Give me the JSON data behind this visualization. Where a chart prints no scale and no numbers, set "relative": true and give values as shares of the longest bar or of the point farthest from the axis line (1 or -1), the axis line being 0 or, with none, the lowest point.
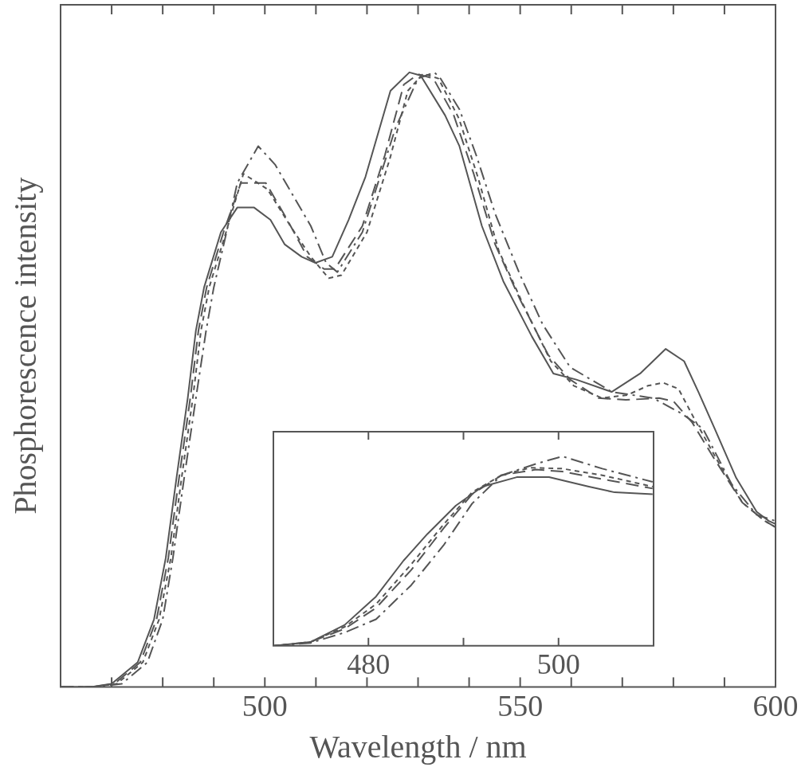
{
  "chart_data": [
    {
      "type": "line",
      "xlabel": "Wavelength / nm",
      "ylabel": "Phosphorescence intensity",
      "relative": true,
      "xlim": [
        460,
        600
      ],
      "xticks": [
        {
          "value": 470,
          "label": null
        },
        {
          "value": 480,
          "label": null
        },
        {
          "value": 490,
          "label": null
        },
        500,
        {
          "value": 510,
          "label": null
        },
        {
          "value": 520,
          "label": null
        },
        {
          "value": 530,
          "label": null
        },
        {
          "value": 540,
          "label": null
        },
        550,
        {
          "value": 560,
          "label": null
        },
        {
          "value": 570,
          "label": null
        },
        {
          "value": 580,
          "label": null
        },
        {
          "value": 590,
          "label": null
        },
        600
      ],
      "grid": false,
      "legend": false,
      "marker": "none",
      "series": [
        {
          "color": "#555555",
          "line_style": "solid",
          "x": [
            460,
            466,
            470,
            475.1,
            478.3,
            480.6,
            482.7,
            484.9,
            486.5,
            488.1,
            491.4,
            494.6,
            497.9,
            501.1,
            503.9,
            507.2,
            509.9,
            513.2,
            516.4,
            519.7,
            524.6,
            528.3,
            530.5,
            535.3,
            538.1,
            542.5,
            546.7,
            552.3,
            556.5,
            561,
            567.9,
            573.5,
            578.5,
            582.1,
            584.9,
            588.1,
            592.3,
            596.3,
            598.7,
            600
          ],
          "values": [
            0,
            0,
            0.005,
            0.04,
            0.11,
            0.21,
            0.34,
            0.47,
            0.58,
            0.65,
            0.74,
            0.78,
            0.78,
            0.76,
            0.72,
            0.7,
            0.69,
            0.7,
            0.76,
            0.83,
            0.97,
            1,
            0.995,
            0.93,
            0.88,
            0.75,
            0.66,
            0.57,
            0.51,
            0.5,
            0.48,
            0.51,
            0.55,
            0.53,
            0.48,
            0.42,
            0.34,
            0.285,
            0.27,
            0.265
          ]
        },
        {
          "color": "#555555",
          "line_style": "dashed",
          "x": [
            460,
            466,
            470.5,
            475.6,
            478.8,
            481.1,
            483.2,
            485.4,
            487,
            488.6,
            491.9,
            495.3,
            500.2,
            504.4,
            508.3,
            511.6,
            513.7,
            519.1,
            523.5,
            527.2,
            530,
            533,
            537,
            540.9,
            545.1,
            550,
            555.5,
            559.8,
            565.3,
            570.7,
            577.2,
            580,
            583.7,
            588.1,
            593.5,
            597.9,
            600
          ],
          "values": [
            0,
            0,
            0.005,
            0.04,
            0.11,
            0.21,
            0.34,
            0.47,
            0.58,
            0.65,
            0.74,
            0.82,
            0.82,
            0.76,
            0.7,
            0.68,
            0.68,
            0.75,
            0.865,
            0.98,
            0.997,
            0.99,
            0.93,
            0.835,
            0.72,
            0.63,
            0.54,
            0.5,
            0.47,
            0.467,
            0.47,
            0.465,
            0.43,
            0.37,
            0.3,
            0.27,
            0.26
          ]
        },
        {
          "color": "#555555",
          "line_style": "dotted",
          "x": [
            460,
            466,
            471,
            476.1,
            479.3,
            481.6,
            483.7,
            485.9,
            487.5,
            489.1,
            492.4,
            495.8,
            500.5,
            505,
            509,
            512.5,
            515,
            520,
            524.5,
            528,
            531,
            534,
            538,
            541.7,
            545.8,
            550.7,
            556,
            560.5,
            566,
            571,
            575,
            578,
            581,
            584.5,
            588.5,
            593.5,
            597.9,
            600
          ],
          "values": [
            0,
            0,
            0.005,
            0.04,
            0.11,
            0.21,
            0.34,
            0.47,
            0.58,
            0.65,
            0.74,
            0.835,
            0.81,
            0.75,
            0.7,
            0.665,
            0.67,
            0.74,
            0.86,
            0.97,
            0.998,
            0.99,
            0.925,
            0.83,
            0.71,
            0.62,
            0.53,
            0.49,
            0.47,
            0.475,
            0.49,
            0.495,
            0.485,
            0.43,
            0.37,
            0.3,
            0.27,
            0.26
          ]
        },
        {
          "color": "#555555",
          "line_style": "dashdot",
          "x": [
            460,
            467,
            472,
            477,
            480,
            482,
            484.2,
            486.5,
            488.5,
            490,
            492.5,
            494.6,
            498.7,
            502,
            505.5,
            509,
            512,
            514.2,
            519.1,
            525.6,
            530,
            533.2,
            534.4,
            538.1,
            541.4,
            545.1,
            550,
            554.4,
            559.8,
            568,
            576,
            581.6,
            585.8,
            591.4,
            596.3,
            600
          ],
          "values": [
            0,
            0,
            0.005,
            0.04,
            0.11,
            0.21,
            0.34,
            0.47,
            0.58,
            0.65,
            0.74,
            0.82,
            0.88,
            0.85,
            0.8,
            0.75,
            0.69,
            0.675,
            0.74,
            0.91,
            0.99,
            1,
            0.99,
            0.94,
            0.865,
            0.77,
            0.67,
            0.59,
            0.52,
            0.48,
            0.47,
            0.445,
            0.42,
            0.33,
            0.28,
            0.27
          ]
        }
      ]
    },
    {
      "type": "line",
      "relative": true,
      "xlim": [
        470,
        510
      ],
      "xticks": [
        480,
        {
          "value": 490,
          "label": null
        },
        500
      ],
      "grid": false,
      "legend": false,
      "marker": "none",
      "series": [
        {
          "color": "#555555",
          "line_style": "solid",
          "x": [
            470.1,
            473.9,
            477.5,
            480.8,
            483.7,
            486.2,
            489.2,
            492,
            495.6,
            499,
            503.2,
            505.9,
            509.9
          ],
          "values": [
            0,
            0.02,
            0.11,
            0.26,
            0.45,
            0.59,
            0.74,
            0.84,
            0.89,
            0.89,
            0.84,
            0.81,
            0.8
          ]
        },
        {
          "color": "#555555",
          "line_style": "dashed",
          "x": [
            470.1,
            473.9,
            477.5,
            480.8,
            484.5,
            487.9,
            490.9,
            494,
            497.6,
            500.4,
            504.6,
            509.9
          ],
          "values": [
            0,
            0.02,
            0.09,
            0.2,
            0.4,
            0.62,
            0.8,
            0.9,
            0.93,
            0.92,
            0.88,
            0.83
          ]
        },
        {
          "color": "#555555",
          "line_style": "dotted",
          "x": [
            470.1,
            473.9,
            477.5,
            480.8,
            484.5,
            487.9,
            490.9,
            494,
            497,
            500.4,
            504.6,
            509.9
          ],
          "values": [
            0,
            0.02,
            0.1,
            0.22,
            0.43,
            0.64,
            0.81,
            0.9,
            0.94,
            0.935,
            0.9,
            0.84
          ]
        },
        {
          "color": "#555555",
          "line_style": "dashdot",
          "x": [
            470.1,
            473.9,
            477.5,
            480.8,
            484.5,
            487.9,
            490.9,
            494,
            497.6,
            500.4,
            504.6,
            509.9
          ],
          "values": [
            0,
            0.015,
            0.07,
            0.14,
            0.32,
            0.53,
            0.75,
            0.9,
            0.96,
            1,
            0.935,
            0.865
          ]
        }
      ]
    }
  ]
}
